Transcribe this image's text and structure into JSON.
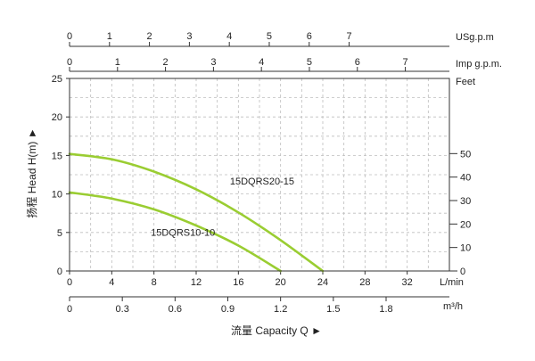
{
  "chart_data": {
    "type": "line",
    "series": [
      {
        "name": "15DQRS20-15",
        "x": [
          0,
          4,
          8,
          12,
          16,
          20,
          24
        ],
        "y": [
          15.2,
          14.5,
          12.9,
          10.6,
          7.6,
          4.0,
          0
        ],
        "label_x": 15.2,
        "label_y": 11.2
      },
      {
        "name": "15DQRS10-10",
        "x": [
          0,
          4,
          8,
          12,
          16,
          20
        ],
        "y": [
          10.2,
          9.4,
          8.0,
          5.9,
          3.3,
          0
        ],
        "label_x": 7.7,
        "label_y": 4.6
      }
    ],
    "line_color": "#9ACD32",
    "grid": "dashed",
    "axes": {
      "flow_lmin": {
        "unit": "L/min",
        "min": 0,
        "max": 36,
        "ticks": [
          0,
          4,
          8,
          12,
          16,
          20,
          24,
          28,
          32
        ]
      },
      "flow_m3h": {
        "unit": "m³/h",
        "ticks": [
          0,
          0.3,
          0.6,
          0.9,
          1.2,
          1.5,
          1.8
        ]
      },
      "flow_imp_gpm": {
        "unit": "Imp g.p.m.",
        "ticks": [
          0,
          1,
          2,
          3,
          4,
          5,
          6,
          7
        ]
      },
      "flow_us_gpm": {
        "unit": "USg.p.m",
        "ticks": [
          0,
          1,
          2,
          3,
          4,
          5,
          6,
          7
        ]
      },
      "head_m": {
        "min": 0,
        "max": 25,
        "ticks": [
          0,
          5,
          10,
          15,
          20,
          25
        ]
      },
      "head_feet": {
        "unit": "Feet",
        "ticks": [
          0,
          10,
          20,
          30,
          40,
          50
        ]
      }
    },
    "xlabel": "流量 Capacity Q ►",
    "ylabel": "扬程 Head H(m) ►"
  }
}
